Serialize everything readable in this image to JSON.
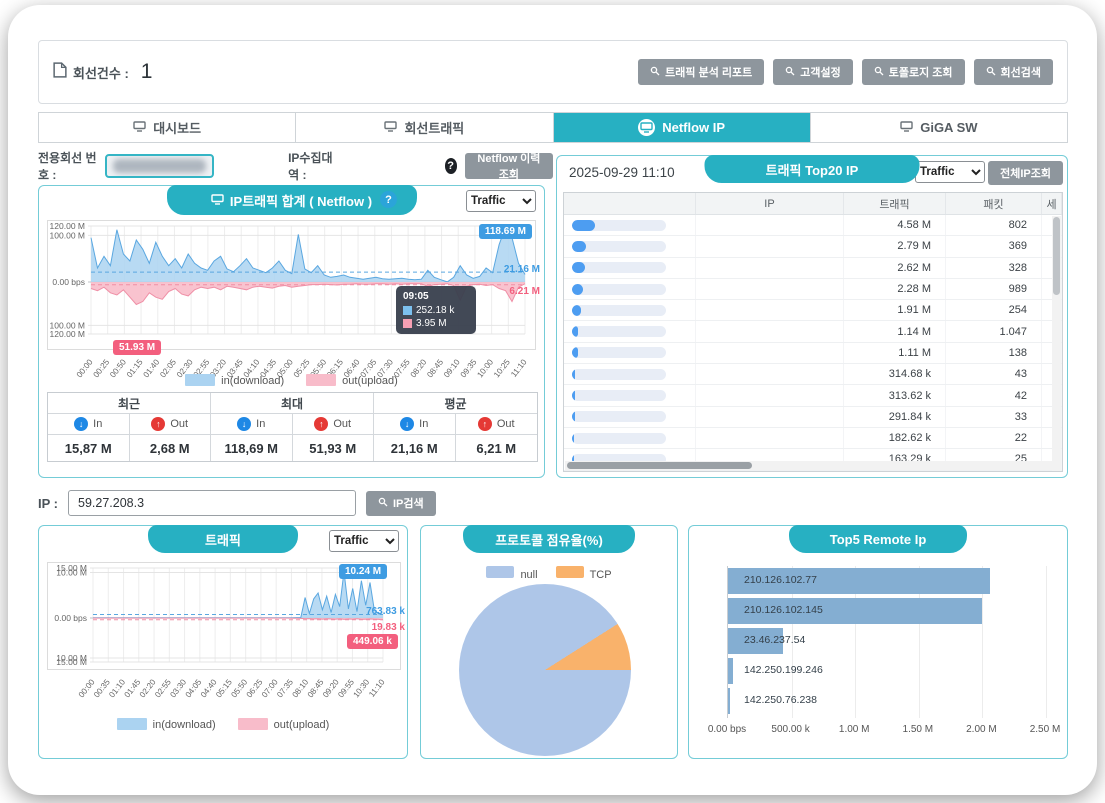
{
  "icons": {
    "help": "?",
    "in_arrow": "↓",
    "out_arrow": "↑"
  },
  "header": {
    "count_label": "회선건수 :",
    "count_value": "1",
    "buttons": [
      "트래픽 분석 리포트",
      "고객설정",
      "토폴로지 조회",
      "회선검색"
    ]
  },
  "tabs": [
    {
      "label": "대시보드",
      "active": false
    },
    {
      "label": "회선트래픽",
      "active": false
    },
    {
      "label": "Netflow IP",
      "active": true
    },
    {
      "label": "GiGA SW",
      "active": false
    }
  ],
  "subbar": {
    "line_label": "전용회선 번호 :",
    "ip_band_label": "IP수집대역 :",
    "history_button": "Netflow 이력조회"
  },
  "left_panel": {
    "title": "IP트래픽 합계 ( Netflow )",
    "traffic_select": "Traffic",
    "badges": {
      "max_in": "118.69 M",
      "avg_in": "21.16 M",
      "avg_out": "6.21 M",
      "max_out": "51.93 M"
    },
    "tooltip": {
      "time": "09:05",
      "in": "252.18 k",
      "out": "3.95 M"
    },
    "stats": {
      "groups": [
        "최근",
        "최대",
        "평균"
      ],
      "in_label": "In",
      "out_label": "Out",
      "values": [
        "15,87 M",
        "2,68 M",
        "118,69 M",
        "51,93 M",
        "21,16 M",
        "6,21 M"
      ]
    }
  },
  "right_panel": {
    "date": "2025-09-29 11:10",
    "title": "트래픽 Top20 IP",
    "traffic_select": "Traffic",
    "all_ip_button": "전체IP조회",
    "columns": [
      "",
      "IP",
      "트래픽",
      "패킷",
      "세"
    ],
    "rows": [
      {
        "bar_pct": 24,
        "ip": "",
        "traffic": "4.58 M",
        "packets": "802"
      },
      {
        "bar_pct": 15,
        "ip": "",
        "traffic": "2.79 M",
        "packets": "369"
      },
      {
        "bar_pct": 14,
        "ip": "",
        "traffic": "2.62 M",
        "packets": "328"
      },
      {
        "bar_pct": 12,
        "ip": "",
        "traffic": "2.28 M",
        "packets": "989"
      },
      {
        "bar_pct": 10,
        "ip": "",
        "traffic": "1.91 M",
        "packets": "254"
      },
      {
        "bar_pct": 6,
        "ip": "",
        "traffic": "1.14 M",
        "packets": "1.047"
      },
      {
        "bar_pct": 6,
        "ip": "",
        "traffic": "1.11 M",
        "packets": "138"
      },
      {
        "bar_pct": 3,
        "ip": "",
        "traffic": "314.68 k",
        "packets": "43"
      },
      {
        "bar_pct": 3,
        "ip": "",
        "traffic": "313.62 k",
        "packets": "42"
      },
      {
        "bar_pct": 3,
        "ip": "",
        "traffic": "291.84 k",
        "packets": "33"
      },
      {
        "bar_pct": 2,
        "ip": "",
        "traffic": "182.62 k",
        "packets": "22"
      },
      {
        "bar_pct": 2,
        "ip": "",
        "traffic": "163.29 k",
        "packets": "25"
      }
    ]
  },
  "ip_search": {
    "label": "IP :",
    "value": "59.27.208.3",
    "button": "IP검색"
  },
  "bottom_left": {
    "title": "트래픽",
    "traffic_select": "Traffic",
    "badges": {
      "max_in": "10.24 M",
      "avg_in": "763.83 k",
      "avg_out": "19.83 k",
      "max_out": "449.06 k"
    }
  },
  "protocol_panel": {
    "title": "프로토콜 점유율(%)"
  },
  "top5_panel": {
    "title": "Top5 Remote Ip"
  },
  "chart_data": [
    {
      "type": "area",
      "title": "IP트래픽 합계 ( Netflow )",
      "unit": "bps",
      "ymax": 120,
      "ygrid": [
        120,
        100,
        -100,
        -120
      ],
      "ylabels": [
        {
          "v": 120,
          "t": "120.00 M"
        },
        {
          "v": 100,
          "t": "100.00 M"
        },
        {
          "v": 0,
          "t": "0.00 bps"
        },
        {
          "v": -100,
          "t": "100.00 M"
        },
        {
          "v": -120,
          "t": "120.00 M"
        }
      ],
      "xticks": [
        "00:00",
        "00:25",
        "00:50",
        "01:15",
        "01:40",
        "02:05",
        "02:30",
        "02:55",
        "03:20",
        "03:45",
        "04:10",
        "04:35",
        "05:00",
        "05:25",
        "05:50",
        "06:15",
        "06:40",
        "07:05",
        "07:30",
        "07:55",
        "08:20",
        "08:45",
        "09:10",
        "09:35",
        "10:00",
        "10:25",
        "11:10"
      ],
      "avg_in": 21.16,
      "avg_out": 6.21,
      "series": [
        {
          "name": "in(download)",
          "color": "#5aa7e0",
          "fill": "#abd3f1",
          "values": [
            95,
            30,
            55,
            35,
            112,
            60,
            45,
            90,
            70,
            40,
            85,
            55,
            35,
            50,
            30,
            60,
            40,
            30,
            25,
            45,
            55,
            28,
            22,
            35,
            50,
            30,
            25,
            20,
            30,
            45,
            25,
            18,
            102,
            28,
            20,
            35,
            15,
            10,
            12,
            15,
            10,
            8,
            6,
            8,
            10,
            7,
            6,
            7,
            8,
            6,
            5,
            6,
            25,
            10,
            5,
            0.25,
            10,
            35,
            15,
            8,
            12,
            30,
            20,
            80,
            118.69,
            95,
            40,
            16
          ]
        },
        {
          "name": "out(upload)",
          "color": "#ef8fa6",
          "fill": "#f8bcca",
          "values": [
            15,
            20,
            12,
            25,
            30,
            18,
            35,
            51.93,
            45,
            25,
            35,
            40,
            22,
            15,
            28,
            32,
            18,
            12,
            15,
            12,
            18,
            10,
            12,
            15,
            18,
            12,
            10,
            12,
            14,
            10,
            8,
            12,
            10,
            8,
            6,
            6,
            5,
            6,
            7,
            5,
            5,
            4,
            5,
            5,
            4,
            4,
            5,
            4,
            5,
            4,
            4,
            4,
            10,
            6,
            5,
            3.95,
            8,
            42,
            10,
            6,
            5,
            8,
            6,
            15,
            20,
            45,
            12,
            4
          ]
        }
      ],
      "annotations": {
        "max_in": "118.69 M",
        "avg_in": "21.16 M",
        "avg_out": "6.21 M",
        "max_out": "51.93 M",
        "tooltip": {
          "time": "09:05",
          "in": "252.18 k",
          "out": "3.95 M"
        }
      }
    },
    {
      "type": "area",
      "title": "트래픽",
      "unit": "bps",
      "ymax": 11,
      "ygrid": [
        15,
        10,
        -10,
        -15
      ],
      "ylabels": [
        {
          "v": 15,
          "t": "15.00 M"
        },
        {
          "v": 10,
          "t": "10.00 M"
        },
        {
          "v": 0,
          "t": "0.00 bps"
        },
        {
          "v": -10,
          "t": "10.00 M"
        },
        {
          "v": -15,
          "t": "15.00 M"
        }
      ],
      "xticks": [
        "00:00",
        "00:35",
        "01:10",
        "01:45",
        "02:20",
        "02:55",
        "03:30",
        "04:05",
        "04:40",
        "05:15",
        "05:50",
        "06:25",
        "07:00",
        "07:35",
        "08:10",
        "08:45",
        "09:20",
        "09:55",
        "10:30",
        "11:10"
      ],
      "avg_in": 0.76,
      "avg_out": 0.02,
      "series": [
        {
          "name": "in(download)",
          "color": "#5aa7e0",
          "fill": "#abd3f1",
          "values": [
            0.05,
            0.05,
            0.05,
            0.05,
            0.05,
            0.05,
            0.05,
            0.05,
            0.05,
            0.05,
            0.05,
            0.05,
            0.05,
            0.05,
            0.05,
            0.05,
            0.05,
            0.05,
            0.05,
            0.05,
            0.05,
            0.05,
            0.05,
            0.05,
            0.05,
            0.05,
            0.05,
            0.05,
            0.05,
            0.05,
            0.05,
            0.05,
            0.05,
            0.05,
            0.05,
            0.05,
            0.05,
            0.05,
            0.05,
            0.05,
            0.05,
            0.05,
            0.05,
            0.05,
            0.05,
            0.05,
            0.06,
            0.08,
            0.1,
            4.5,
            1.0,
            4.2,
            5.5,
            1.8,
            4.8,
            1.2,
            5.2,
            2.5,
            10.24,
            2.0,
            6.5,
            1.4,
            8.2,
            2.8,
            7.8,
            1.8,
            0.9,
            0.76
          ]
        },
        {
          "name": "out(upload)",
          "color": "#ef8fa6",
          "fill": "#f8bcca",
          "values": [
            0.02,
            0.02,
            0.02,
            0.02,
            0.02,
            0.02,
            0.02,
            0.02,
            0.02,
            0.02,
            0.02,
            0.02,
            0.02,
            0.02,
            0.02,
            0.02,
            0.02,
            0.02,
            0.02,
            0.02,
            0.02,
            0.02,
            0.02,
            0.02,
            0.02,
            0.02,
            0.02,
            0.02,
            0.02,
            0.02,
            0.02,
            0.02,
            0.02,
            0.02,
            0.02,
            0.02,
            0.02,
            0.02,
            0.02,
            0.02,
            0.02,
            0.02,
            0.02,
            0.02,
            0.02,
            0.02,
            0.05,
            0.08,
            0.1,
            0.2,
            0.15,
            0.25,
            0.2,
            0.3,
            0.2,
            0.25,
            0.3,
            0.2,
            0.35,
            0.25,
            0.3,
            0.2,
            0.35,
            0.3,
            0.25,
            0.3,
            0.35,
            0.449
          ]
        }
      ],
      "annotations": {
        "max_in": "10.24 M",
        "avg_in": "763.83 k",
        "avg_out": "19.83 k",
        "max_out": "449.06 k"
      }
    },
    {
      "type": "pie",
      "title": "프로토콜 점유율(%)",
      "labels": [
        "null",
        "TCP"
      ],
      "values_pct": [
        91,
        9
      ],
      "colors": [
        "#aec6e8",
        "#f9b26b"
      ]
    },
    {
      "type": "bar",
      "title": "Top5 Remote Ip",
      "orientation": "horizontal",
      "categories": [
        "210.126.102.77",
        "210.126.102.145",
        "23.46.237.54",
        "142.250.199.246",
        "142.250.76.238"
      ],
      "values_bps": [
        2060000,
        2000000,
        430000,
        42000,
        16000
      ],
      "xmax": 2500000,
      "bar_color": "#84aed2",
      "xticks": [
        {
          "v": 0,
          "t": "0.00 bps"
        },
        {
          "v": 500000,
          "t": "500.00 k"
        },
        {
          "v": 1000000,
          "t": "1.00 M"
        },
        {
          "v": 1500000,
          "t": "1.50 M"
        },
        {
          "v": 2000000,
          "t": "2.00 M"
        },
        {
          "v": 2500000,
          "t": "2.50 M"
        }
      ]
    }
  ]
}
